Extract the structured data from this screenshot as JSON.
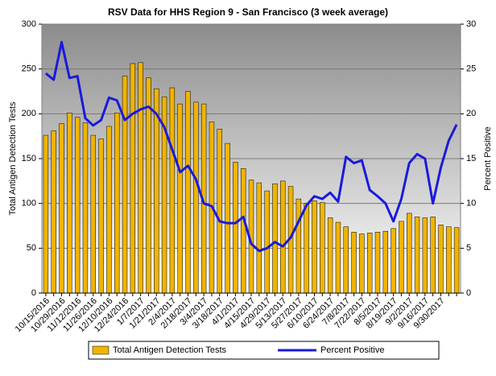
{
  "chart_data": {
    "type": "bar-line",
    "title": "RSV Data for HHS Region 9 - San Francisco (3 week average)",
    "y_label": "Total Antigen Detection Tests",
    "y2_label": "Percent Positive",
    "categories": [
      "10/15/2016",
      null,
      "10/29/2016",
      null,
      "11/12/2016",
      null,
      "11/26/2016",
      null,
      "12/10/2016",
      null,
      "12/24/2016",
      null,
      "1/7/2017",
      null,
      "1/21/2017",
      null,
      "2/4/2017",
      null,
      "2/18/2017",
      null,
      "3/4/2017",
      null,
      "3/18/2017",
      null,
      "4/1/2017",
      null,
      "4/15/2017",
      null,
      "4/29/2017",
      null,
      "5/13/2017",
      null,
      "5/27/2017",
      null,
      "6/10/2017",
      null,
      "6/24/2017",
      null,
      "7/8/2017",
      null,
      "7/22/2017",
      null,
      "8/5/2017",
      null,
      "8/19/2017",
      null,
      "9/2/2017",
      null,
      "9/16/2017",
      null,
      "9/30/2017",
      null,
      null
    ],
    "series": [
      {
        "name": "Total Antigen Detection Tests",
        "type": "bar",
        "color": "#f0b400",
        "values": [
          176,
          181,
          189,
          201,
          196,
          190,
          176,
          172,
          186,
          201,
          242,
          256,
          257,
          240,
          228,
          219,
          229,
          211,
          225,
          213,
          211,
          191,
          183,
          167,
          146,
          139,
          126,
          123,
          114,
          122,
          125,
          119,
          105,
          100,
          103,
          101,
          84,
          79,
          74,
          68,
          66,
          67,
          68,
          69,
          72,
          80,
          89,
          85,
          84,
          85,
          76,
          74,
          73
        ]
      },
      {
        "name": "Percent Positive",
        "type": "line",
        "axis": "y2",
        "color": "#1a1adc",
        "values": [
          24.5,
          23.8,
          28,
          24,
          24.2,
          19.5,
          18.7,
          19.3,
          21.8,
          21.5,
          19.3,
          20,
          20.5,
          20.8,
          20,
          18.5,
          16,
          13.5,
          14.2,
          12.7,
          10,
          9.7,
          8,
          7.8,
          7.8,
          8.5,
          5.5,
          4.7,
          5,
          5.7,
          5.2,
          6.2,
          8,
          9.8,
          10.8,
          10.5,
          11.2,
          10.2,
          15.2,
          14.5,
          14.8,
          11.5,
          10.8,
          10,
          8,
          10.5,
          14.5,
          15.5,
          15,
          10,
          14,
          17,
          18.8
        ]
      }
    ],
    "ylim": [
      0,
      300
    ],
    "yticks": [
      0,
      50,
      100,
      150,
      200,
      250,
      300
    ],
    "y2lim": [
      0,
      30
    ],
    "y2ticks": [
      0,
      5,
      10,
      15,
      20,
      25,
      30
    ],
    "grid": true,
    "legend": "bottom"
  }
}
